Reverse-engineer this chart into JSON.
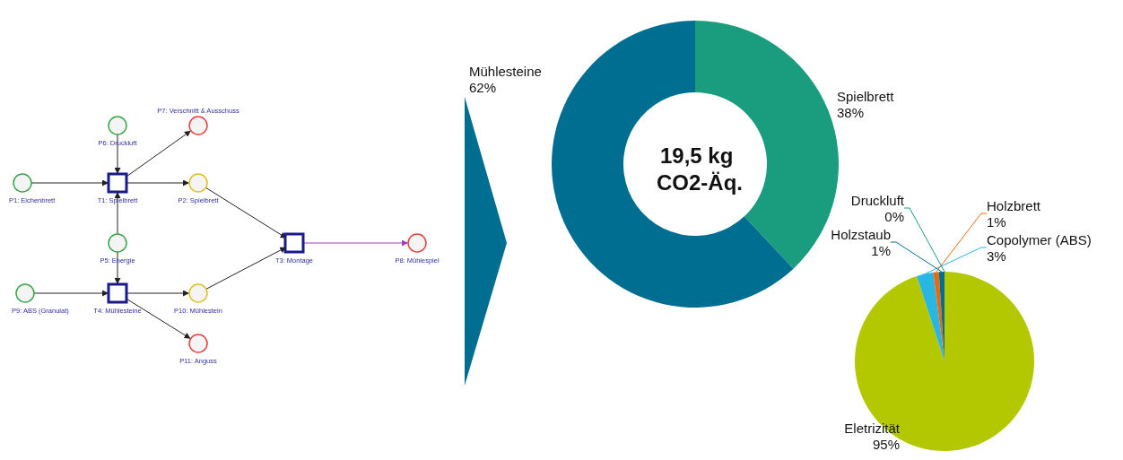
{
  "chart_data": [
    {
      "type": "other",
      "annotations": [
        "P6: Druckluft",
        "P7: Verschnitt & Ausschuss",
        "P1: Eichenbrett",
        "T1: Spielbrett",
        "P2: Spielbrett",
        "P5: Energie",
        "T3: Montage",
        "P8: Mühlespiel",
        "P9: ABS (Granulat)",
        "T4: Mühlesteine",
        "P10: Mühlestein",
        "P11: Anguss"
      ]
    },
    {
      "type": "donut",
      "title": "19,5 kg CO2-Äq.",
      "categories": [
        "Spielbrett",
        "Mühlesteine"
      ],
      "values": [
        38,
        62
      ],
      "colors": [
        "#1a9c7e",
        "#006e91"
      ],
      "value_labels": [
        "38%",
        "62%"
      ]
    },
    {
      "type": "pie",
      "categories": [
        "Eletrizität",
        "Copolymer (ABS)",
        "Holzbrett",
        "Holzstaub",
        "Druckluft"
      ],
      "values": [
        95,
        3,
        1,
        1,
        0
      ],
      "colors": [
        "#b3c800",
        "#29b6e0",
        "#e86a10",
        "#006e91",
        "#1a9c7e"
      ],
      "value_labels": [
        "95%",
        "3%",
        "1%",
        "1%",
        "0%"
      ]
    }
  ]
}
